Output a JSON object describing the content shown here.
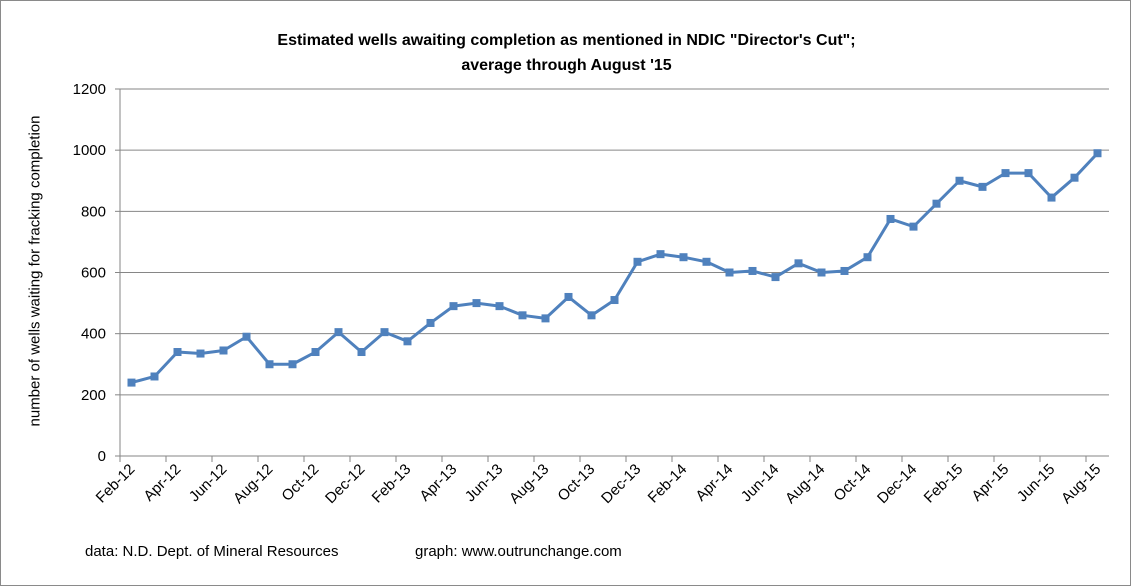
{
  "chart_data": {
    "type": "line",
    "title": [
      "Estimated wells awaiting completion as mentioned in NDIC \"Director's Cut\";",
      "average through August '15"
    ],
    "xlabel": "",
    "ylabel": "number of wells waiting for fracking completion",
    "ylim": [
      0,
      1200
    ],
    "yticks": [
      0,
      200,
      400,
      600,
      800,
      1000,
      1200
    ],
    "grid": true,
    "legend": "none",
    "series_color": "#4f81bd",
    "x": [
      "Feb-12",
      "Mar-12",
      "Apr-12",
      "May-12",
      "Jun-12",
      "Jul-12",
      "Aug-12",
      "Sep-12",
      "Oct-12",
      "Nov-12",
      "Dec-12",
      "Jan-13",
      "Feb-13",
      "Mar-13",
      "Apr-13",
      "May-13",
      "Jun-13",
      "Jul-13",
      "Aug-13",
      "Sep-13",
      "Oct-13",
      "Nov-13",
      "Dec-13",
      "Jan-14",
      "Feb-14",
      "Mar-14",
      "Apr-14",
      "May-14",
      "Jun-14",
      "Jul-14",
      "Aug-14",
      "Sep-14",
      "Oct-14",
      "Nov-14",
      "Dec-14",
      "Jan-15",
      "Feb-15",
      "Mar-15",
      "Apr-15",
      "May-15",
      "Jun-15",
      "Jul-15",
      "Aug-15"
    ],
    "xtick_labels": [
      "Feb-12",
      "Apr-12",
      "Jun-12",
      "Aug-12",
      "Oct-12",
      "Dec-12",
      "Feb-13",
      "Apr-13",
      "Jun-13",
      "Aug-13",
      "Oct-13",
      "Dec-13",
      "Feb-14",
      "Apr-14",
      "Jun-14",
      "Aug-14",
      "Oct-14",
      "Dec-14",
      "Feb-15",
      "Apr-15",
      "Jun-15",
      "Aug-15"
    ],
    "series": [
      {
        "name": "wells awaiting completion",
        "values": [
          240,
          260,
          340,
          335,
          345,
          390,
          300,
          300,
          340,
          405,
          340,
          405,
          375,
          435,
          490,
          500,
          490,
          460,
          450,
          520,
          460,
          510,
          635,
          660,
          650,
          635,
          600,
          605,
          585,
          630,
          600,
          605,
          650,
          775,
          750,
          825,
          900,
          880,
          925,
          925,
          845,
          910,
          990
        ]
      }
    ]
  },
  "footer": {
    "source": "data: N.D. Dept. of Mineral Resources",
    "graph": "graph:  www.outrunchange.com"
  }
}
